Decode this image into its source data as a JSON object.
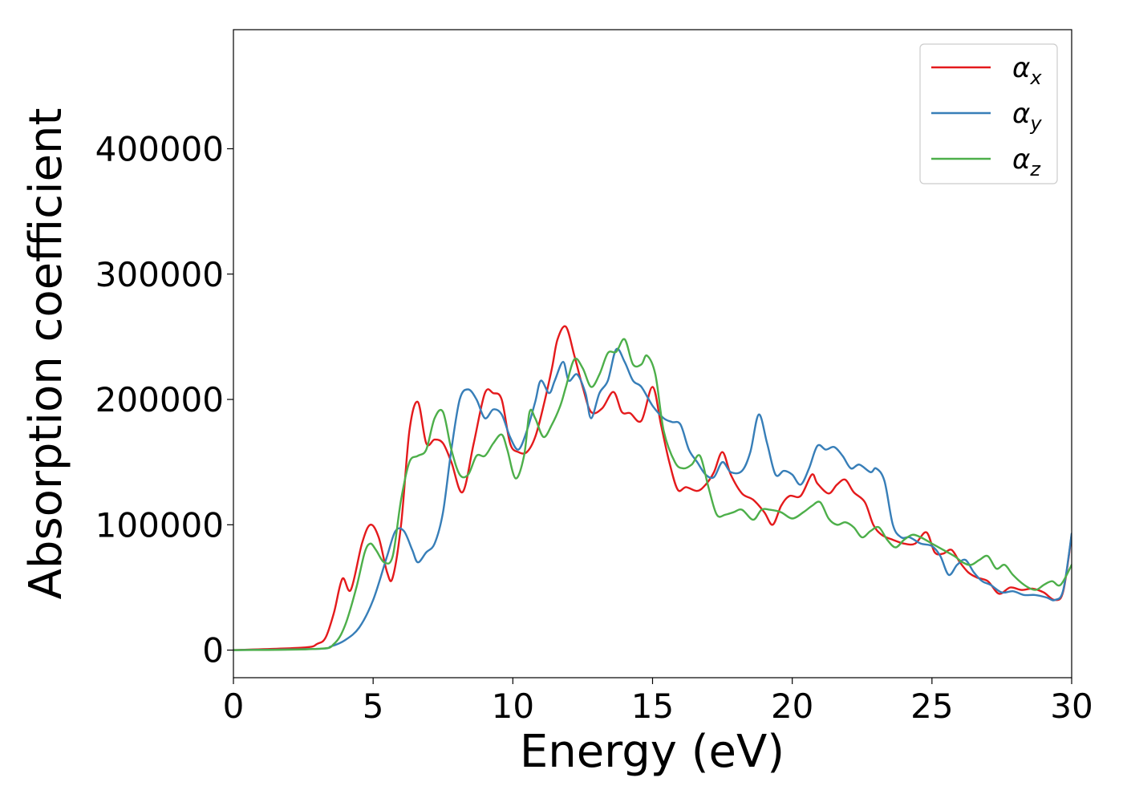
{
  "chart_data": {
    "type": "line",
    "title": "",
    "xlabel": "Energy (eV)",
    "ylabel": "Absorption coefficient",
    "xlim": [
      0,
      30
    ],
    "ylim": [
      -22000,
      495000
    ],
    "xticks": [
      0,
      5,
      10,
      15,
      20,
      25,
      30
    ],
    "yticks": [
      0,
      100000,
      200000,
      300000,
      400000
    ],
    "grid": false,
    "legend_position": "top-right",
    "series": [
      {
        "name": "α",
        "subscript": "x",
        "color": "#e41a1c",
        "x": [
          0,
          2.5,
          3.0,
          3.3,
          3.6,
          3.9,
          4.2,
          4.6,
          4.9,
          5.2,
          5.5,
          5.7,
          6.0,
          6.3,
          6.6,
          6.9,
          7.2,
          7.5,
          7.8,
          8.2,
          8.6,
          9.0,
          9.3,
          9.6,
          9.9,
          10.2,
          10.5,
          10.8,
          11.1,
          11.4,
          11.6,
          11.9,
          12.2,
          12.5,
          12.8,
          13.2,
          13.6,
          13.9,
          14.2,
          14.6,
          15.0,
          15.3,
          15.6,
          15.9,
          16.2,
          16.6,
          16.9,
          17.2,
          17.5,
          17.8,
          18.2,
          18.6,
          19.0,
          19.3,
          19.6,
          19.9,
          20.3,
          20.7,
          20.9,
          21.3,
          21.6,
          21.9,
          22.2,
          22.6,
          22.9,
          23.2,
          23.6,
          24.0,
          24.4,
          24.8,
          25.1,
          25.4,
          25.7,
          26.0,
          26.3,
          26.6,
          27.0,
          27.4,
          27.8,
          28.2,
          28.6,
          29.0,
          29.4,
          29.7,
          30.0
        ],
        "y": [
          0,
          2000,
          5000,
          10000,
          30000,
          57000,
          48000,
          85000,
          100000,
          90000,
          62000,
          58000,
          100000,
          175000,
          198000,
          165000,
          168000,
          165000,
          150000,
          126000,
          165000,
          205000,
          205000,
          200000,
          165000,
          158000,
          158000,
          170000,
          195000,
          225000,
          248000,
          258000,
          235000,
          210000,
          190000,
          193000,
          206000,
          190000,
          189000,
          183000,
          210000,
          180000,
          150000,
          128000,
          130000,
          127000,
          132000,
          142000,
          158000,
          140000,
          125000,
          120000,
          110000,
          100000,
          115000,
          123000,
          123000,
          140000,
          133000,
          125000,
          132000,
          136000,
          126000,
          118000,
          100000,
          92000,
          88000,
          85000,
          85000,
          94000,
          78000,
          77000,
          80000,
          70000,
          62000,
          58000,
          55000,
          45000,
          50000,
          48000,
          49000,
          46000,
          40000,
          47000,
          92000
        ]
      },
      {
        "name": "α",
        "subscript": "y",
        "color": "#377eb8",
        "x": [
          0,
          3.0,
          3.5,
          4.0,
          4.5,
          5.0,
          5.5,
          5.8,
          6.1,
          6.4,
          6.6,
          6.9,
          7.2,
          7.5,
          7.8,
          8.1,
          8.4,
          8.7,
          9.0,
          9.3,
          9.6,
          9.9,
          10.2,
          10.5,
          10.8,
          11.0,
          11.3,
          11.5,
          11.8,
          12.0,
          12.3,
          12.6,
          12.8,
          13.1,
          13.4,
          13.7,
          14.0,
          14.3,
          14.6,
          15.0,
          15.4,
          15.7,
          16.0,
          16.3,
          16.6,
          16.9,
          17.2,
          17.5,
          17.8,
          18.2,
          18.5,
          18.8,
          19.1,
          19.4,
          19.7,
          20.0,
          20.3,
          20.6,
          20.9,
          21.2,
          21.5,
          21.8,
          22.1,
          22.4,
          22.8,
          23.0,
          23.3,
          23.6,
          23.9,
          24.2,
          24.6,
          25.0,
          25.3,
          25.6,
          25.9,
          26.2,
          26.5,
          26.8,
          27.1,
          27.5,
          27.9,
          28.3,
          28.7,
          29.1,
          29.4,
          29.7,
          30.0
        ],
        "y": [
          0,
          1000,
          3000,
          8000,
          18000,
          40000,
          75000,
          95000,
          95000,
          80000,
          70000,
          78000,
          85000,
          110000,
          160000,
          200000,
          208000,
          200000,
          185000,
          192000,
          188000,
          170000,
          160000,
          175000,
          198000,
          215000,
          205000,
          215000,
          230000,
          215000,
          220000,
          205000,
          185000,
          205000,
          215000,
          240000,
          230000,
          215000,
          210000,
          195000,
          185000,
          182000,
          180000,
          160000,
          150000,
          140000,
          138000,
          150000,
          142000,
          143000,
          158000,
          188000,
          165000,
          140000,
          143000,
          140000,
          132000,
          145000,
          163000,
          160000,
          162000,
          155000,
          145000,
          148000,
          142000,
          145000,
          135000,
          100000,
          90000,
          90000,
          85000,
          83000,
          75000,
          60000,
          68000,
          72000,
          62000,
          55000,
          52000,
          46000,
          47000,
          44000,
          44000,
          42000,
          40000,
          48000,
          93000
        ]
      },
      {
        "name": "α",
        "subscript": "z",
        "color": "#4daf4a",
        "x": [
          0,
          3.0,
          3.6,
          4.0,
          4.4,
          4.7,
          4.9,
          5.1,
          5.4,
          5.7,
          6.0,
          6.3,
          6.6,
          6.9,
          7.2,
          7.5,
          7.8,
          8.1,
          8.4,
          8.7,
          9.0,
          9.3,
          9.6,
          9.8,
          10.1,
          10.4,
          10.6,
          10.8,
          11.1,
          11.4,
          11.7,
          11.9,
          12.2,
          12.5,
          12.8,
          13.1,
          13.4,
          13.7,
          14.0,
          14.3,
          14.6,
          14.8,
          15.1,
          15.4,
          15.8,
          16.1,
          16.4,
          16.7,
          17.0,
          17.3,
          17.6,
          17.9,
          18.2,
          18.6,
          18.9,
          19.2,
          19.6,
          20.0,
          20.4,
          20.7,
          21.0,
          21.3,
          21.6,
          21.9,
          22.2,
          22.5,
          22.8,
          23.1,
          23.4,
          23.7,
          24.0,
          24.3,
          24.6,
          25.0,
          25.4,
          25.8,
          26.1,
          26.4,
          26.7,
          27.0,
          27.3,
          27.6,
          27.9,
          28.3,
          28.7,
          29.0,
          29.3,
          29.6,
          30.0
        ],
        "y": [
          0,
          1000,
          5000,
          20000,
          50000,
          78000,
          85000,
          80000,
          70000,
          75000,
          120000,
          150000,
          155000,
          160000,
          185000,
          190000,
          160000,
          140000,
          140000,
          155000,
          155000,
          165000,
          172000,
          160000,
          137000,
          155000,
          190000,
          185000,
          170000,
          180000,
          195000,
          210000,
          232000,
          225000,
          210000,
          220000,
          237000,
          238000,
          248000,
          228000,
          228000,
          235000,
          220000,
          175000,
          150000,
          145000,
          148000,
          155000,
          130000,
          108000,
          108000,
          110000,
          112000,
          104000,
          112000,
          112000,
          110000,
          105000,
          110000,
          115000,
          118000,
          105000,
          100000,
          102000,
          98000,
          90000,
          95000,
          98000,
          88000,
          82000,
          88000,
          92000,
          90000,
          85000,
          80000,
          75000,
          70000,
          68000,
          72000,
          75000,
          65000,
          68000,
          60000,
          52000,
          48000,
          52000,
          55000,
          52000,
          68000
        ]
      }
    ]
  }
}
